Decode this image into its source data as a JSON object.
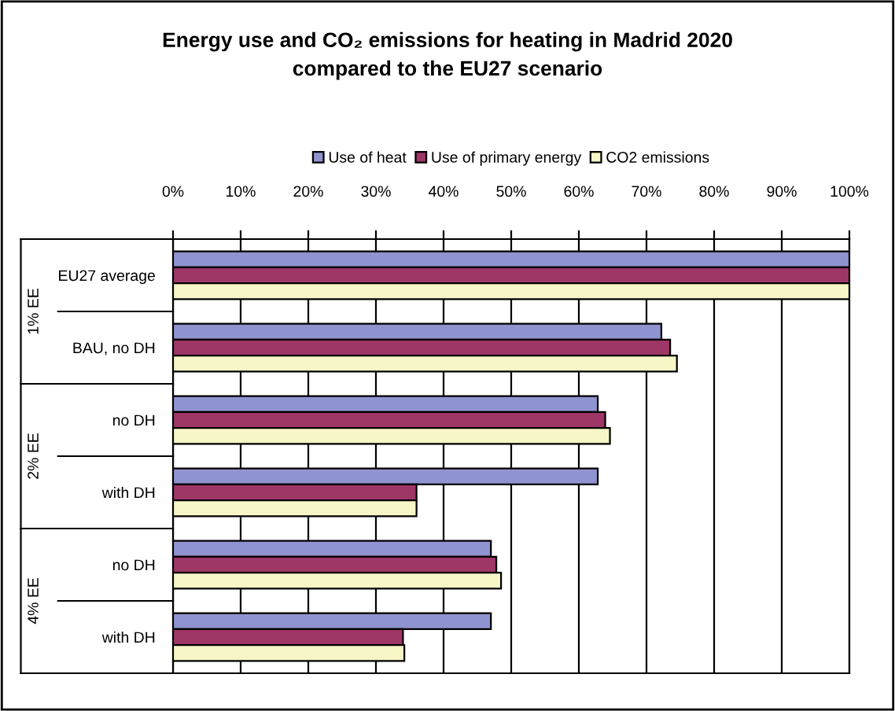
{
  "chart_data": {
    "type": "bar",
    "orientation": "horizontal",
    "title": "Energy use and CO₂ emissions for heating in Madrid 2020\ncompared to the EU27 scenario",
    "categories": [
      "EU27 average",
      "BAU, no DH",
      "no DH",
      "with DH",
      "no DH",
      "with DH"
    ],
    "annotations": [
      "1% EE",
      "2% EE",
      "4% EE"
    ],
    "series": [
      {
        "name": "Use of heat",
        "color": "#8f93cf",
        "values": [
          100,
          72.2,
          62.8,
          62.8,
          47.0,
          47.0
        ]
      },
      {
        "name": "Use of primary energy",
        "color": "#9e3666",
        "values": [
          100,
          73.5,
          63.9,
          36.0,
          47.8,
          34.0
        ]
      },
      {
        "name": "CO2 emissions",
        "color": "#f6f6c6",
        "values": [
          100,
          74.5,
          64.6,
          36.0,
          48.5,
          34.2
        ]
      }
    ],
    "xlim": [
      0,
      100
    ],
    "xticks": [
      {
        "value": 0,
        "label": "0%"
      },
      {
        "value": 10,
        "label": "10%"
      },
      {
        "value": 20,
        "label": "20%"
      },
      {
        "value": 30,
        "label": "30%"
      },
      {
        "value": 40,
        "label": "40%"
      },
      {
        "value": 50,
        "label": "50%"
      },
      {
        "value": 60,
        "label": "60%"
      },
      {
        "value": 70,
        "label": "70%"
      },
      {
        "value": 80,
        "label": "80%"
      },
      {
        "value": 90,
        "label": "90%"
      },
      {
        "value": 100,
        "label": "100%"
      }
    ],
    "grid": "x",
    "legend": "top"
  }
}
